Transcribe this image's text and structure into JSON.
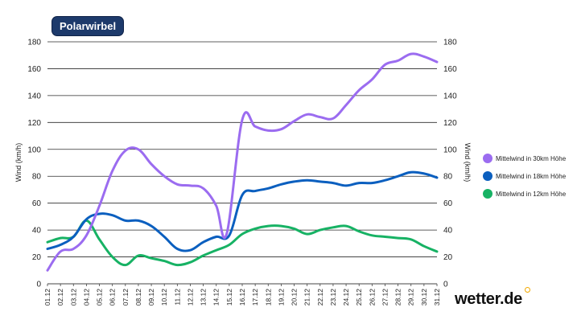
{
  "title": "Polarwirbel",
  "brand": "wetter.de",
  "chart_data": {
    "type": "line",
    "ylabel": "Wind (km/h)",
    "ylabel_right": "Wind (km/h)",
    "ylim": [
      0,
      180
    ],
    "yticks": [
      0,
      20,
      40,
      60,
      80,
      100,
      120,
      140,
      160,
      180
    ],
    "grid": true,
    "legend_position": "right",
    "categories": [
      "01.12",
      "02.12",
      "03.12",
      "04.12",
      "05.12",
      "06.12",
      "07.12",
      "08.12",
      "09.12",
      "10.12",
      "11.12",
      "12.12",
      "13.12",
      "14.12",
      "15.12",
      "16.12",
      "17.12",
      "18.12",
      "19.12",
      "20.12",
      "21.12",
      "22.12",
      "23.12",
      "24.12",
      "25.12",
      "26.12",
      "27.12",
      "28.12",
      "29.12",
      "30.12",
      "31.12"
    ],
    "series": [
      {
        "name": "Mittelwind in 30km Höhe",
        "color": "#9b6cf0",
        "values": [
          [
            1,
            10
          ],
          [
            2,
            24
          ],
          [
            3,
            26
          ],
          [
            4,
            36
          ],
          [
            5,
            58
          ],
          [
            6,
            84
          ],
          [
            7,
            99
          ],
          [
            8,
            100
          ],
          [
            9,
            89
          ],
          [
            10,
            80
          ],
          [
            11,
            74
          ],
          [
            12,
            73
          ],
          [
            13,
            71
          ],
          [
            14,
            58
          ],
          [
            14.8,
            37
          ],
          [
            16,
            122
          ],
          [
            17,
            117
          ],
          [
            18,
            114
          ],
          [
            19,
            115
          ],
          [
            20,
            121
          ],
          [
            21,
            126
          ],
          [
            22,
            124
          ],
          [
            23,
            123
          ],
          [
            24,
            133
          ],
          [
            25,
            144
          ],
          [
            26,
            152
          ],
          [
            27,
            163
          ],
          [
            28,
            166
          ],
          [
            29,
            171
          ],
          [
            30,
            169
          ],
          [
            31,
            165
          ]
        ]
      },
      {
        "name": "Mittelwind in 18km Höhe",
        "color": "#0b5fbf",
        "values": [
          [
            1,
            26
          ],
          [
            2,
            29
          ],
          [
            3,
            35
          ],
          [
            4,
            48
          ],
          [
            5,
            52
          ],
          [
            6,
            51
          ],
          [
            7,
            47
          ],
          [
            8,
            47
          ],
          [
            9,
            43
          ],
          [
            10,
            35
          ],
          [
            11,
            26
          ],
          [
            12,
            25
          ],
          [
            13,
            31
          ],
          [
            14,
            35
          ],
          [
            15,
            36
          ],
          [
            16,
            66
          ],
          [
            17,
            69
          ],
          [
            18,
            71
          ],
          [
            19,
            74
          ],
          [
            20,
            76
          ],
          [
            21,
            77
          ],
          [
            22,
            76
          ],
          [
            23,
            75
          ],
          [
            24,
            73
          ],
          [
            25,
            75
          ],
          [
            26,
            75
          ],
          [
            27,
            77
          ],
          [
            28,
            80
          ],
          [
            29,
            83
          ],
          [
            30,
            82
          ],
          [
            31,
            79
          ]
        ]
      },
      {
        "name": "Mittelwind in 12km Höhe",
        "color": "#17b264",
        "values": [
          [
            1,
            31
          ],
          [
            2,
            34
          ],
          [
            3,
            35
          ],
          [
            4,
            47
          ],
          [
            5,
            33
          ],
          [
            6,
            20
          ],
          [
            7,
            14
          ],
          [
            8,
            21
          ],
          [
            9,
            19
          ],
          [
            10,
            17
          ],
          [
            11,
            14
          ],
          [
            12,
            16
          ],
          [
            13,
            21
          ],
          [
            14,
            25
          ],
          [
            15,
            29
          ],
          [
            16,
            37
          ],
          [
            17,
            41
          ],
          [
            18,
            43
          ],
          [
            19,
            43
          ],
          [
            20,
            41
          ],
          [
            21,
            37
          ],
          [
            22,
            40
          ],
          [
            23,
            42
          ],
          [
            24,
            43
          ],
          [
            25,
            39
          ],
          [
            26,
            36
          ],
          [
            27,
            35
          ],
          [
            28,
            34
          ],
          [
            29,
            33
          ],
          [
            30,
            28
          ],
          [
            31,
            24
          ]
        ]
      }
    ]
  }
}
